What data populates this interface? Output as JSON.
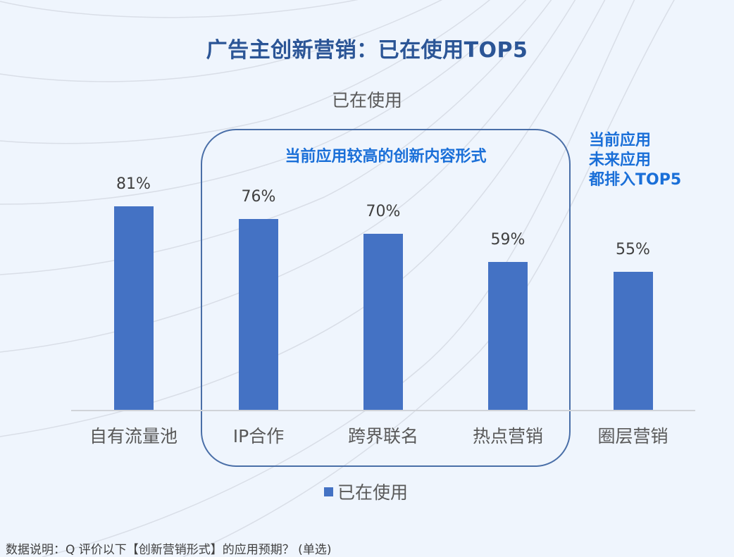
{
  "title": "广告主创新营销：已在使用TOP5",
  "box_label": "当前应用较高的创新内容形式",
  "side_note": [
    "当前应用",
    "未来应用",
    "都排入TOP5"
  ],
  "legend": {
    "label": "已在使用",
    "color": "#4472c4"
  },
  "footnote": "数据说明：Q 评价以下【创新营销形式】的应用预期？  (单选)",
  "colors": {
    "title": "#2b5596",
    "bar": "#4472c4",
    "highlight": "#1a6fd8",
    "box_border": "#4a6fa8",
    "background": "#eff5fd"
  },
  "chart_data": {
    "type": "bar",
    "title": "已在使用",
    "categories": [
      "自有流量池",
      "IP合作",
      "跨界联名",
      "热点营销",
      "圈层营销"
    ],
    "series": [
      {
        "name": "已在使用",
        "values": [
          81,
          76,
          70,
          59,
          55
        ]
      }
    ],
    "value_labels": [
      "81%",
      "76%",
      "70%",
      "59%",
      "55%"
    ],
    "xlabel": "",
    "ylabel": "",
    "ylim": [
      0,
      100
    ],
    "grid": false,
    "legend_position": "bottom",
    "annotations": [
      {
        "text": "当前应用较高的创新内容形式",
        "spans": [
          "IP合作",
          "跨界联名",
          "热点营销"
        ]
      },
      {
        "text": "当前应用 未来应用 都排入TOP5"
      }
    ]
  }
}
